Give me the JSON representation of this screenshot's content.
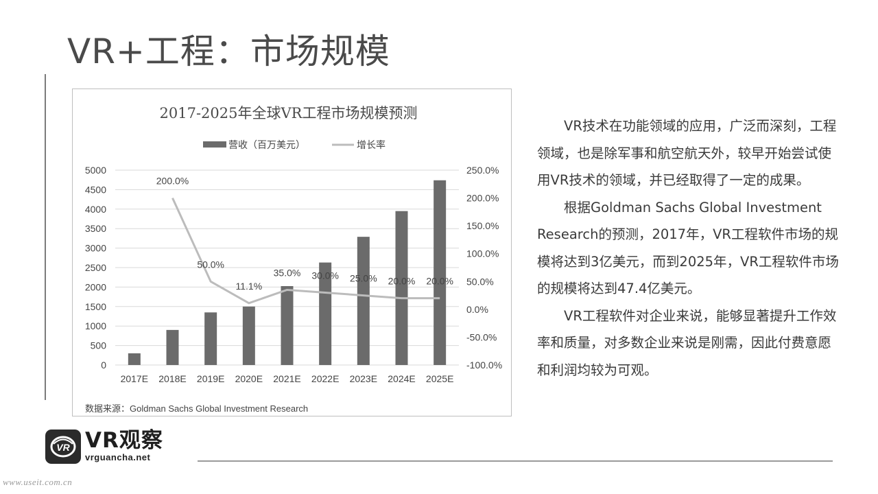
{
  "page": {
    "title": "VR+工程：市场规模"
  },
  "chart_data": {
    "type": "bar",
    "title": "2017-2025年全球VR工程市场规模预测",
    "categories": [
      "2017E",
      "2018E",
      "2019E",
      "2020E",
      "2021E",
      "2022E",
      "2023E",
      "2024E",
      "2025E"
    ],
    "series": [
      {
        "name": "营收（百万美元）",
        "type": "bar",
        "axis": "left",
        "values": [
          300,
          900,
          1350,
          1500,
          2025,
          2630,
          3290,
          3950,
          4740
        ]
      },
      {
        "name": "增长率",
        "type": "line",
        "axis": "right",
        "values": [
          null,
          200.0,
          50.0,
          11.1,
          35.0,
          30.0,
          25.0,
          20.0,
          20.0
        ],
        "labels": [
          "",
          "200.0%",
          "50.0%",
          "11.1%",
          "35.0%",
          "30.0%",
          "25.0%",
          "20.0%",
          "20.0%"
        ]
      }
    ],
    "ylim": [
      0,
      5000
    ],
    "y_ticks": [
      "0",
      "500",
      "1000",
      "1500",
      "2000",
      "2500",
      "3000",
      "3500",
      "4000",
      "4500",
      "5000"
    ],
    "y2lim": [
      -100,
      250
    ],
    "y2_ticks": [
      "-100.0%",
      "-50.0%",
      "0.0%",
      "50.0%",
      "100.0%",
      "150.0%",
      "200.0%",
      "250.0%"
    ],
    "grid": true,
    "legend": "top-center",
    "colors": {
      "bar": "#6b6b6b",
      "line": "#bcbcbc",
      "grid": "#d9d9d9"
    },
    "source": "数据来源：Goldman Sachs Global Investment Research"
  },
  "text": {
    "paragraph_1": "VR技术在功能领域的应用，广泛而深刻，工程领域，也是除军事和航空航天外，较早开始尝试使用VR技术的领域，并已经取得了一定的成果。",
    "paragraph_2": "根据Goldman Sachs Global Investment Research的预测，2017年，VR工程软件市场的规模将达到3亿美元，而到2025年，VR工程软件市场的规模将达到47.4亿美元。",
    "paragraph_3": "VR工程软件对企业来说，能够显著提升工作效率和质量，对多数企业来说是刚需，因此付费意愿和利润均较为可观。"
  },
  "logo": {
    "name": "VR观察",
    "url": "vrguancha.net",
    "icon": "vr-logo-icon"
  },
  "watermark": "www.useit.com.cn"
}
